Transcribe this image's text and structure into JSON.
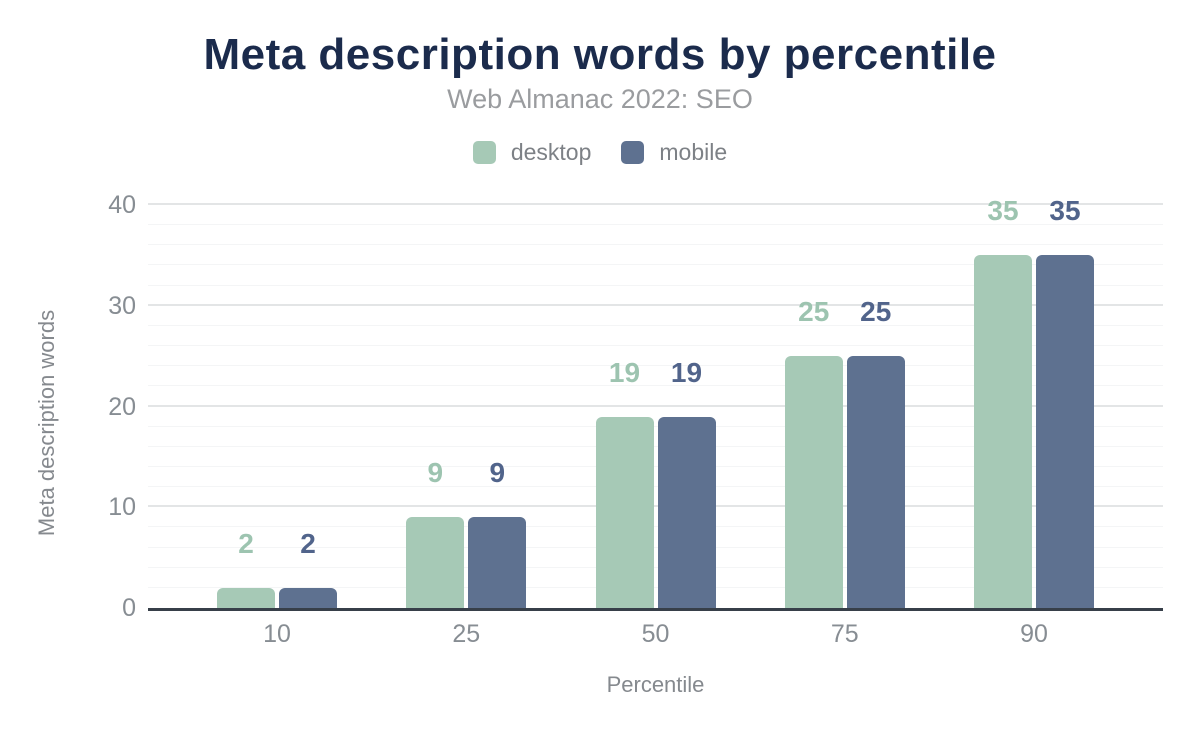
{
  "chart_data": {
    "type": "bar",
    "title": "Meta description words by percentile",
    "subtitle": "Web Almanac 2022: SEO",
    "xlabel": "Percentile",
    "ylabel": "Meta description words",
    "categories": [
      "10",
      "25",
      "50",
      "75",
      "90"
    ],
    "series": [
      {
        "name": "desktop",
        "color": "#a6c9b6",
        "label_color": "#9dc4b0",
        "values": [
          2,
          9,
          19,
          25,
          35
        ]
      },
      {
        "name": "mobile",
        "color": "#5e7190",
        "label_color": "#51648b",
        "values": [
          2,
          9,
          19,
          25,
          35
        ]
      }
    ],
    "ylim": [
      0,
      40
    ],
    "yticks": [
      0,
      10,
      20,
      30,
      40
    ],
    "grid": true,
    "grid_minor_step": 2,
    "grid_major_step": 10,
    "legend_position": "top",
    "bar_value_labels": true,
    "colors": {
      "title_text": "#1b2b4c",
      "subtitle_text": "#9a9c9f",
      "legend_text": "#7d8186",
      "tick_text": "#878d93",
      "axis_title_text": "#85898e",
      "axis_line": "#373f49",
      "grid_major": "#e3e5e6",
      "grid_minor": "#f4f5f6"
    }
  }
}
